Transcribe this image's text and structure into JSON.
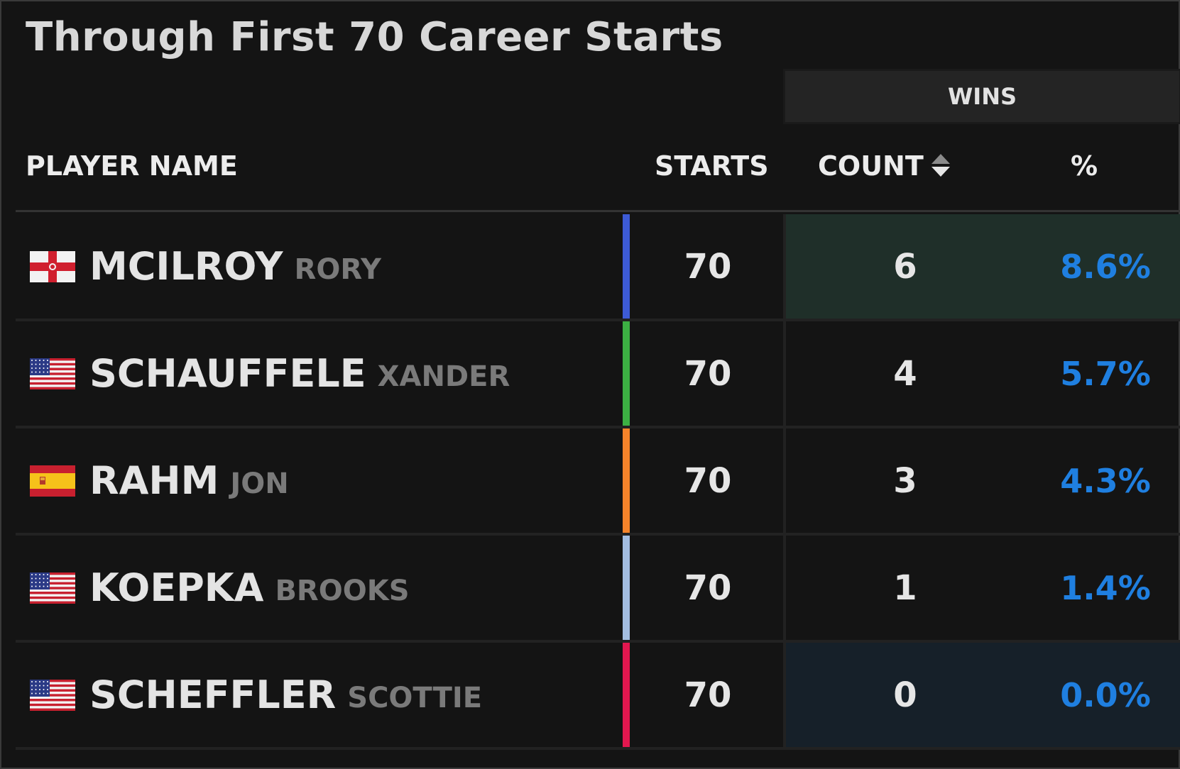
{
  "title": "Through First 70 Career Starts",
  "group_header": "WINS",
  "columns": {
    "player": "PLAYER NAME",
    "starts": "STARTS",
    "count": "COUNT",
    "pct": "%"
  },
  "icons": {
    "sort": "sort-icon"
  },
  "colors": {
    "highlight_high": "#1f2f29",
    "highlight_low": "#162029",
    "pct_text": "#1f7fe0"
  },
  "rows": [
    {
      "last": "MCILROY",
      "first": "RORY",
      "flag": "northern-ireland-flag",
      "color": "#3d5bd6",
      "starts": "70",
      "count": "6",
      "pct": "8.6%",
      "highlight": "#1f2f29"
    },
    {
      "last": "SCHAUFFELE",
      "first": "XANDER",
      "flag": "usa-flag",
      "color": "#3cb043",
      "starts": "70",
      "count": "4",
      "pct": "5.7%",
      "highlight": ""
    },
    {
      "last": "RAHM",
      "first": "JON",
      "flag": "spain-flag",
      "color": "#f5832a",
      "starts": "70",
      "count": "3",
      "pct": "4.3%",
      "highlight": ""
    },
    {
      "last": "KOEPKA",
      "first": "BROOKS",
      "flag": "usa-flag",
      "color": "#a3bde0",
      "starts": "70",
      "count": "1",
      "pct": "1.4%",
      "highlight": ""
    },
    {
      "last": "SCHEFFLER",
      "first": "SCOTTIE",
      "flag": "usa-flag",
      "color": "#e2174f",
      "starts": "70",
      "count": "0",
      "pct": "0.0%",
      "highlight": "#162029"
    }
  ]
}
